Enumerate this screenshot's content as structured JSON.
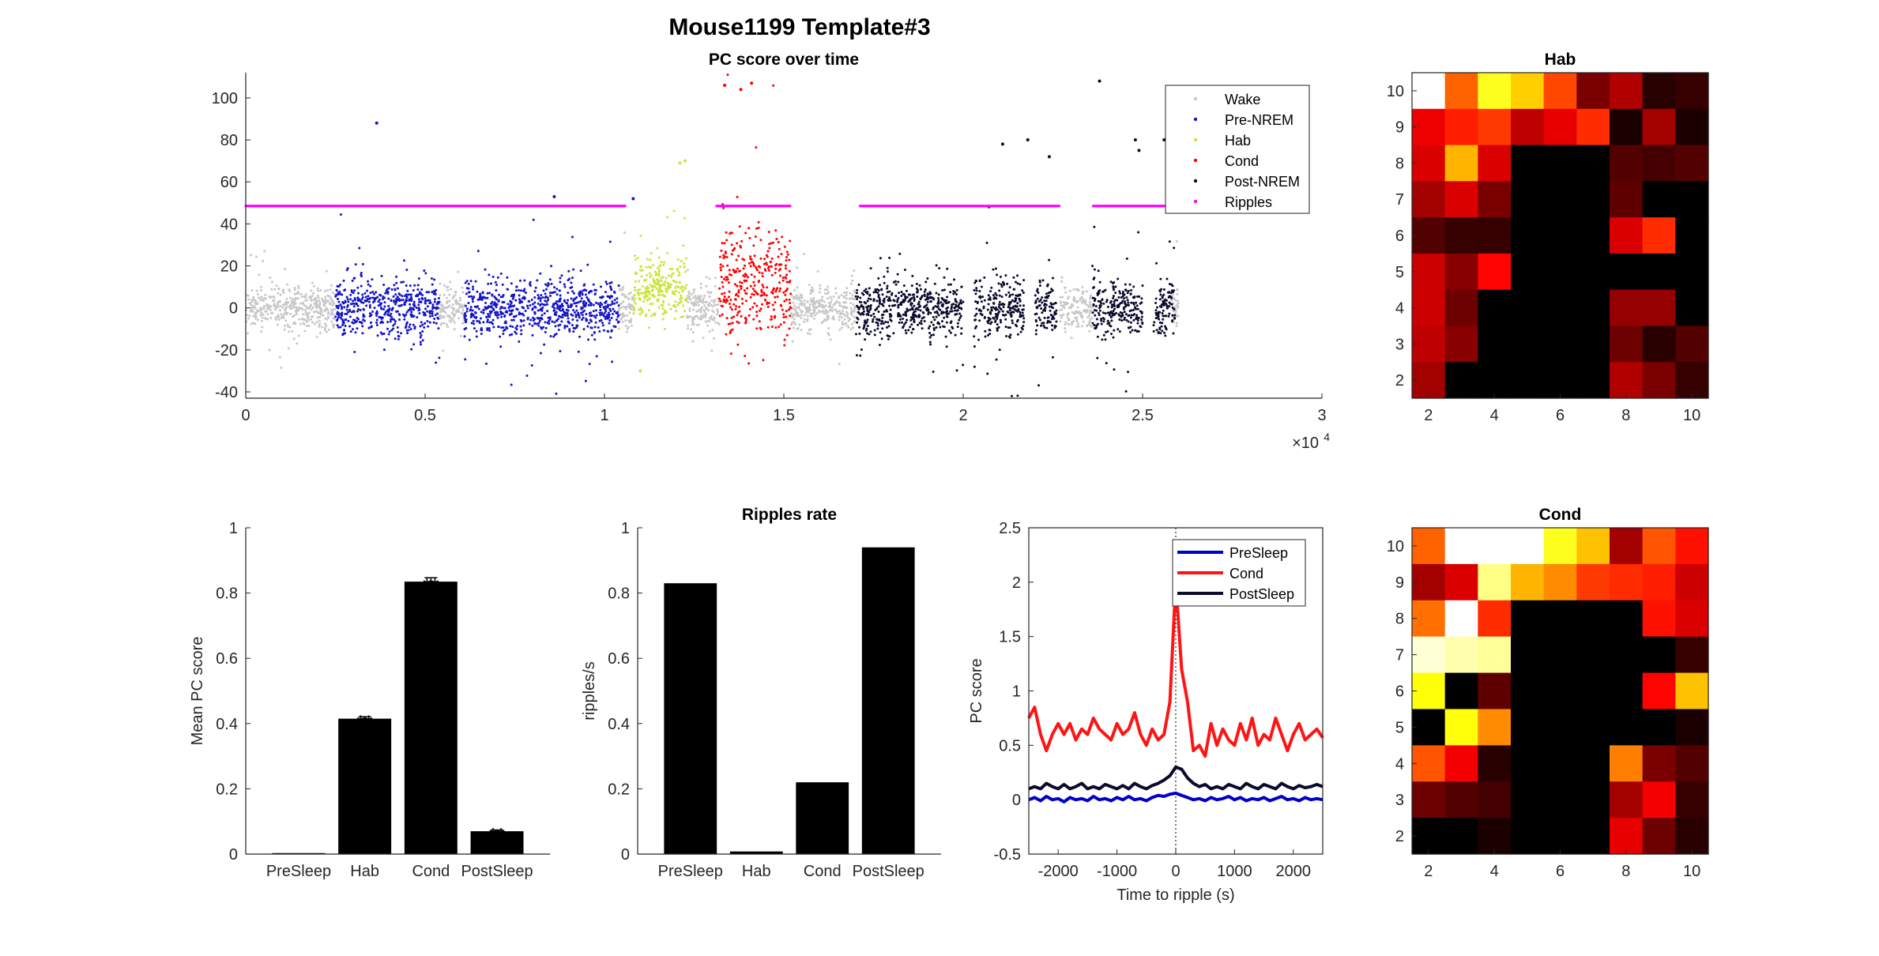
{
  "figure": {
    "title": "Mouse1199 Template#3"
  },
  "chart_data": [
    {
      "id": "scatter",
      "type": "scatter",
      "title": "PC score over time",
      "xlabel": "",
      "ylabel": "",
      "xlim": [
        0,
        30000
      ],
      "ylim": [
        -43,
        112
      ],
      "xticks": [
        0,
        5000,
        10000,
        15000,
        20000,
        25000,
        30000
      ],
      "xtick_labels": [
        "0",
        "0.5",
        "1",
        "1.5",
        "2",
        "2.5",
        "3"
      ],
      "x_exponent_label": "×10",
      "x_exponent_power": "4",
      "yticks": [
        -40,
        -20,
        0,
        20,
        40,
        60,
        80,
        100
      ],
      "ytick_labels": [
        "-40",
        "-20",
        "0",
        "20",
        "40",
        "60",
        "80",
        "100"
      ],
      "legend_position": "top-right",
      "series": [
        {
          "name": "Wake",
          "color": "#c8c8c8",
          "segments": [
            [
              0,
              2500
            ],
            [
              5400,
              6100
            ],
            [
              10400,
              10800
            ],
            [
              12300,
              13200
            ],
            [
              15200,
              17000
            ],
            [
              22700,
              23600
            ],
            [
              25800,
              26000
            ]
          ],
          "center": 0,
          "spread": 9,
          "outlier_spread": 32
        },
        {
          "name": "Pre-NREM",
          "color": "#1414c8",
          "segments": [
            [
              2500,
              3800
            ],
            [
              3800,
              4600
            ],
            [
              4600,
              5400
            ],
            [
              6100,
              7600
            ],
            [
              7600,
              9000
            ],
            [
              9000,
              10400
            ]
          ],
          "center": 0,
          "spread": 12,
          "outlier_spread": 42,
          "extra_points": [
            [
              3650,
              88
            ],
            [
              8600,
              53
            ],
            [
              10800,
              52
            ]
          ]
        },
        {
          "name": "Hab",
          "color": "#c8e63c",
          "segments": [
            [
              10800,
              12300
            ]
          ],
          "center": 10,
          "spread": 14,
          "outlier_spread": 55,
          "extra_points": [
            [
              12250,
              70
            ],
            [
              12100,
              69
            ],
            [
              11000,
              -30
            ]
          ]
        },
        {
          "name": "Cond",
          "color": "#ff0000",
          "segments": [
            [
              13200,
              15200
            ]
          ],
          "center": 12,
          "spread": 22,
          "outlier_spread": 95,
          "extra_points": [
            [
              13350,
              106
            ],
            [
              14100,
              107
            ],
            [
              13800,
              104
            ]
          ]
        },
        {
          "name": "Post-NREM",
          "color": "#0a0a2d",
          "segments": [
            [
              17000,
              18600
            ],
            [
              18600,
              20000
            ],
            [
              20300,
              21700
            ],
            [
              22000,
              22600
            ],
            [
              23600,
              24300
            ],
            [
              24300,
              25000
            ],
            [
              25300,
              25900
            ]
          ],
          "center": 0,
          "spread": 12,
          "outlier_spread": 48,
          "extra_points": [
            [
              21100,
              78
            ],
            [
              21800,
              80
            ],
            [
              22400,
              72
            ],
            [
              23800,
              108
            ],
            [
              24800,
              80
            ],
            [
              25600,
              80
            ],
            [
              24900,
              75
            ]
          ]
        },
        {
          "name": "Ripples",
          "color": "#ff00ff",
          "segments": [
            [
              0,
              26000
            ]
          ],
          "center": 48.5,
          "spread": 0,
          "outlier_spread": 0,
          "gaps": [
            [
              10600,
              13100
            ],
            [
              15200,
              17100
            ],
            [
              22700,
              23600
            ],
            [
              25800,
              26000
            ]
          ]
        }
      ]
    },
    {
      "id": "bar1",
      "type": "bar",
      "title": "",
      "xlabel": "",
      "ylabel": "Mean PC score",
      "categories": [
        "PreSleep",
        "Hab",
        "Cond",
        "PostSleep"
      ],
      "values": [
        0.003,
        0.415,
        0.835,
        0.07
      ],
      "errors": [
        0.0,
        0.006,
        0.012,
        0.004
      ],
      "annotations": [
        "",
        "**",
        "**",
        "**"
      ],
      "ylim": [
        0,
        1
      ],
      "yticks": [
        0,
        0.2,
        0.4,
        0.6,
        0.8,
        1
      ],
      "ytick_labels": [
        "0",
        "0.2",
        "0.4",
        "0.6",
        "0.8",
        "1"
      ]
    },
    {
      "id": "bar2",
      "type": "bar",
      "title": "Ripples rate",
      "xlabel": "",
      "ylabel": "ripples/s",
      "categories": [
        "PreSleep",
        "Hab",
        "Cond",
        "PostSleep"
      ],
      "values": [
        0.83,
        0.008,
        0.22,
        0.94
      ],
      "ylim": [
        0,
        1
      ],
      "yticks": [
        0,
        0.2,
        0.4,
        0.6,
        0.8,
        1
      ],
      "ytick_labels": [
        "0",
        "0.2",
        "0.4",
        "0.6",
        "0.8",
        "1"
      ]
    },
    {
      "id": "line",
      "type": "line",
      "title": "",
      "xlabel": "Time to ripple (s)",
      "ylabel": "PC score",
      "xlim": [
        -2500,
        2500
      ],
      "ylim": [
        -0.5,
        2.5
      ],
      "xticks": [
        -2000,
        -1000,
        0,
        1000,
        2000
      ],
      "xtick_labels": [
        "-2000",
        "-1000",
        "0",
        "1000",
        "2000"
      ],
      "yticks": [
        -0.5,
        0,
        0.5,
        1,
        1.5,
        2,
        2.5
      ],
      "ytick_labels": [
        "-0.5",
        "0",
        "0.5",
        "1",
        "1.5",
        "2",
        "2.5"
      ],
      "vline": 0,
      "legend_position": "top-right",
      "x": [
        -2500,
        -2400,
        -2300,
        -2200,
        -2100,
        -2000,
        -1900,
        -1800,
        -1700,
        -1600,
        -1500,
        -1400,
        -1300,
        -1200,
        -1100,
        -1000,
        -900,
        -800,
        -700,
        -600,
        -500,
        -400,
        -300,
        -200,
        -100,
        0,
        100,
        200,
        300,
        400,
        500,
        600,
        700,
        800,
        900,
        1000,
        1100,
        1200,
        1300,
        1400,
        1500,
        1600,
        1700,
        1800,
        1900,
        2000,
        2100,
        2200,
        2300,
        2400,
        2500
      ],
      "series": [
        {
          "name": "PreSleep",
          "color": "#0000c8",
          "values": [
            0.0,
            0.02,
            -0.01,
            0.03,
            0.0,
            0.01,
            -0.02,
            0.02,
            0.0,
            0.01,
            -0.01,
            0.03,
            0.0,
            0.01,
            -0.01,
            0.02,
            0.0,
            0.03,
            0.0,
            0.01,
            -0.01,
            0.02,
            0.04,
            0.03,
            0.05,
            0.06,
            0.04,
            0.02,
            0.0,
            0.01,
            -0.01,
            0.02,
            0.0,
            0.01,
            0.03,
            0.0,
            0.02,
            -0.01,
            0.01,
            0.0,
            0.02,
            -0.01,
            0.01,
            0.03,
            0.0,
            0.01,
            -0.01,
            0.02,
            0.0,
            0.01,
            0.0
          ]
        },
        {
          "name": "Cond",
          "color": "#ff1414",
          "values": [
            0.75,
            0.85,
            0.6,
            0.45,
            0.6,
            0.7,
            0.6,
            0.7,
            0.55,
            0.65,
            0.6,
            0.75,
            0.65,
            0.6,
            0.55,
            0.7,
            0.6,
            0.65,
            0.8,
            0.6,
            0.5,
            0.65,
            0.55,
            0.6,
            0.9,
            2.0,
            1.2,
            0.9,
            0.45,
            0.5,
            0.4,
            0.7,
            0.5,
            0.65,
            0.55,
            0.5,
            0.7,
            0.55,
            0.75,
            0.5,
            0.6,
            0.55,
            0.75,
            0.6,
            0.45,
            0.6,
            0.7,
            0.55,
            0.6,
            0.65,
            0.57
          ]
        },
        {
          "name": "PostSleep",
          "color": "#0a0a2d",
          "values": [
            0.1,
            0.12,
            0.1,
            0.15,
            0.12,
            0.1,
            0.14,
            0.1,
            0.12,
            0.15,
            0.1,
            0.12,
            0.1,
            0.14,
            0.12,
            0.1,
            0.13,
            0.1,
            0.15,
            0.12,
            0.1,
            0.13,
            0.15,
            0.18,
            0.22,
            0.3,
            0.28,
            0.2,
            0.15,
            0.12,
            0.14,
            0.1,
            0.12,
            0.1,
            0.14,
            0.12,
            0.1,
            0.15,
            0.12,
            0.1,
            0.14,
            0.12,
            0.1,
            0.15,
            0.12,
            0.1,
            0.13,
            0.11,
            0.12,
            0.14,
            0.12
          ]
        }
      ]
    },
    {
      "id": "heat_hab",
      "type": "heatmap",
      "title": "Hab",
      "colormap": "hot",
      "row_labels_top_to_bottom": [
        10,
        9,
        8,
        7,
        6,
        5,
        4,
        3,
        2
      ],
      "col_labels_left_to_right": [
        2,
        3,
        4,
        5,
        6,
        7,
        8,
        9,
        10
      ],
      "ytick_labels": [
        "10",
        "9",
        "8",
        "7",
        "6",
        "5",
        "4",
        "3",
        "2"
      ],
      "xticks": [
        2,
        4,
        6,
        8,
        10
      ],
      "xtick_labels": [
        "2",
        "4",
        "6",
        "8",
        "10"
      ],
      "values": [
        [
          1.0,
          0.52,
          0.78,
          0.68,
          0.48,
          0.18,
          0.26,
          0.06,
          0.08
        ],
        [
          0.35,
          0.42,
          0.46,
          0.28,
          0.34,
          0.44,
          0.04,
          0.24,
          0.04
        ],
        [
          0.32,
          0.64,
          0.32,
          0.0,
          0.0,
          0.0,
          0.12,
          0.1,
          0.12
        ],
        [
          0.24,
          0.32,
          0.18,
          0.0,
          0.0,
          0.0,
          0.14,
          0.0,
          0.0
        ],
        [
          0.12,
          0.08,
          0.08,
          0.0,
          0.0,
          0.0,
          0.32,
          0.44,
          0.0
        ],
        [
          0.3,
          0.2,
          0.38,
          0.0,
          0.0,
          0.0,
          0.0,
          0.0,
          0.0
        ],
        [
          0.3,
          0.16,
          0.0,
          0.0,
          0.0,
          0.0,
          0.22,
          0.22,
          0.0
        ],
        [
          0.28,
          0.2,
          0.0,
          0.0,
          0.0,
          0.0,
          0.16,
          0.06,
          0.12
        ],
        [
          0.24,
          0.0,
          0.0,
          0.0,
          0.0,
          0.0,
          0.26,
          0.18,
          0.08
        ]
      ]
    },
    {
      "id": "heat_cond",
      "type": "heatmap",
      "title": "Cond",
      "colormap": "hot",
      "row_labels_top_to_bottom": [
        10,
        9,
        8,
        7,
        6,
        5,
        4,
        3,
        2
      ],
      "col_labels_left_to_right": [
        2,
        3,
        4,
        5,
        6,
        7,
        8,
        9,
        10
      ],
      "ytick_labels": [
        "10",
        "9",
        "8",
        "7",
        "6",
        "5",
        "4",
        "3",
        "2"
      ],
      "xticks": [
        2,
        4,
        6,
        8,
        10
      ],
      "xtick_labels": [
        "2",
        "4",
        "6",
        "8",
        "10"
      ],
      "values": [
        [
          0.52,
          1.0,
          1.0,
          1.0,
          0.78,
          0.66,
          0.24,
          0.5,
          0.4
        ],
        [
          0.24,
          0.32,
          0.88,
          0.64,
          0.58,
          0.46,
          0.44,
          0.42,
          0.3
        ],
        [
          0.54,
          1.0,
          0.44,
          0.0,
          0.0,
          0.0,
          0.0,
          0.4,
          0.32
        ],
        [
          0.96,
          0.92,
          0.9,
          0.0,
          0.0,
          0.0,
          0.0,
          0.0,
          0.08
        ],
        [
          0.76,
          0.0,
          0.14,
          0.0,
          0.0,
          0.0,
          0.0,
          0.38,
          0.66
        ],
        [
          0.0,
          0.76,
          0.58,
          0.0,
          0.0,
          0.0,
          0.0,
          0.0,
          0.04
        ],
        [
          0.5,
          0.36,
          0.06,
          0.0,
          0.0,
          0.0,
          0.56,
          0.18,
          0.12
        ],
        [
          0.16,
          0.12,
          0.1,
          0.0,
          0.0,
          0.0,
          0.24,
          0.36,
          0.08
        ],
        [
          0.0,
          0.0,
          0.04,
          0.0,
          0.0,
          0.0,
          0.34,
          0.16,
          0.06
        ]
      ]
    }
  ]
}
